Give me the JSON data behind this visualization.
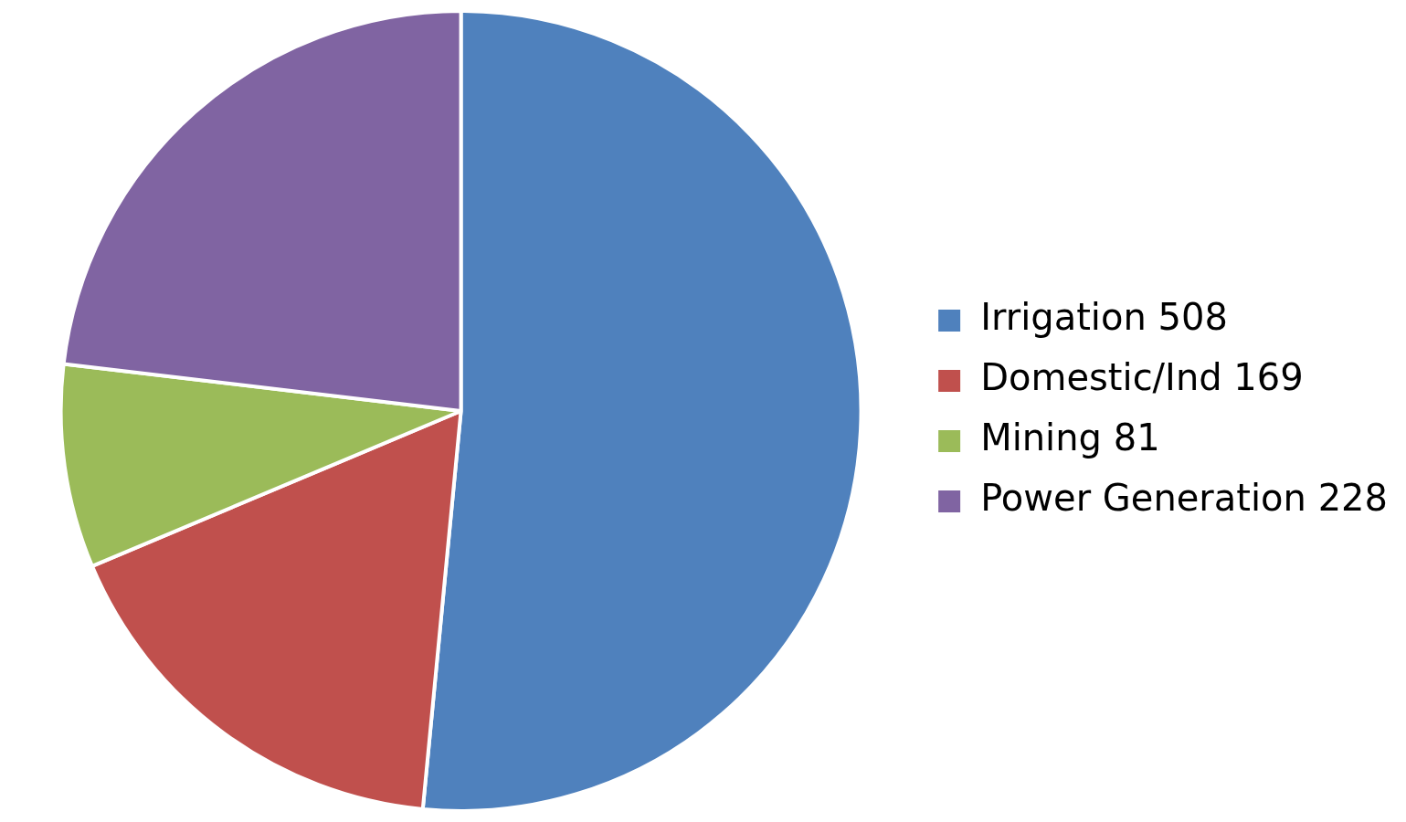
{
  "chart_data": {
    "type": "pie",
    "categories": [
      "Irrigation 508",
      "Domestic/Ind 169",
      "Mining 81",
      "Power Generation 228"
    ],
    "values": [
      508,
      169,
      81,
      228
    ],
    "colors": [
      "#4f81bd",
      "#c0504d",
      "#9bbb59",
      "#8064a2"
    ],
    "legend": "right"
  }
}
